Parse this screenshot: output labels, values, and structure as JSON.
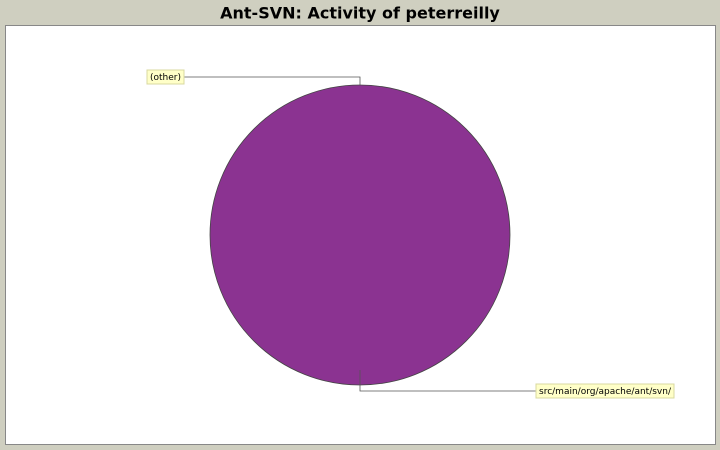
{
  "chart_data": {
    "type": "pie",
    "title": "Ant-SVN: Activity of peterreilly",
    "categories": [
      "(other)",
      "src/main/org/apache/ant/svn/"
    ],
    "values": [
      0,
      100
    ],
    "colors": [
      "#5555ff",
      "#8b3391"
    ]
  }
}
